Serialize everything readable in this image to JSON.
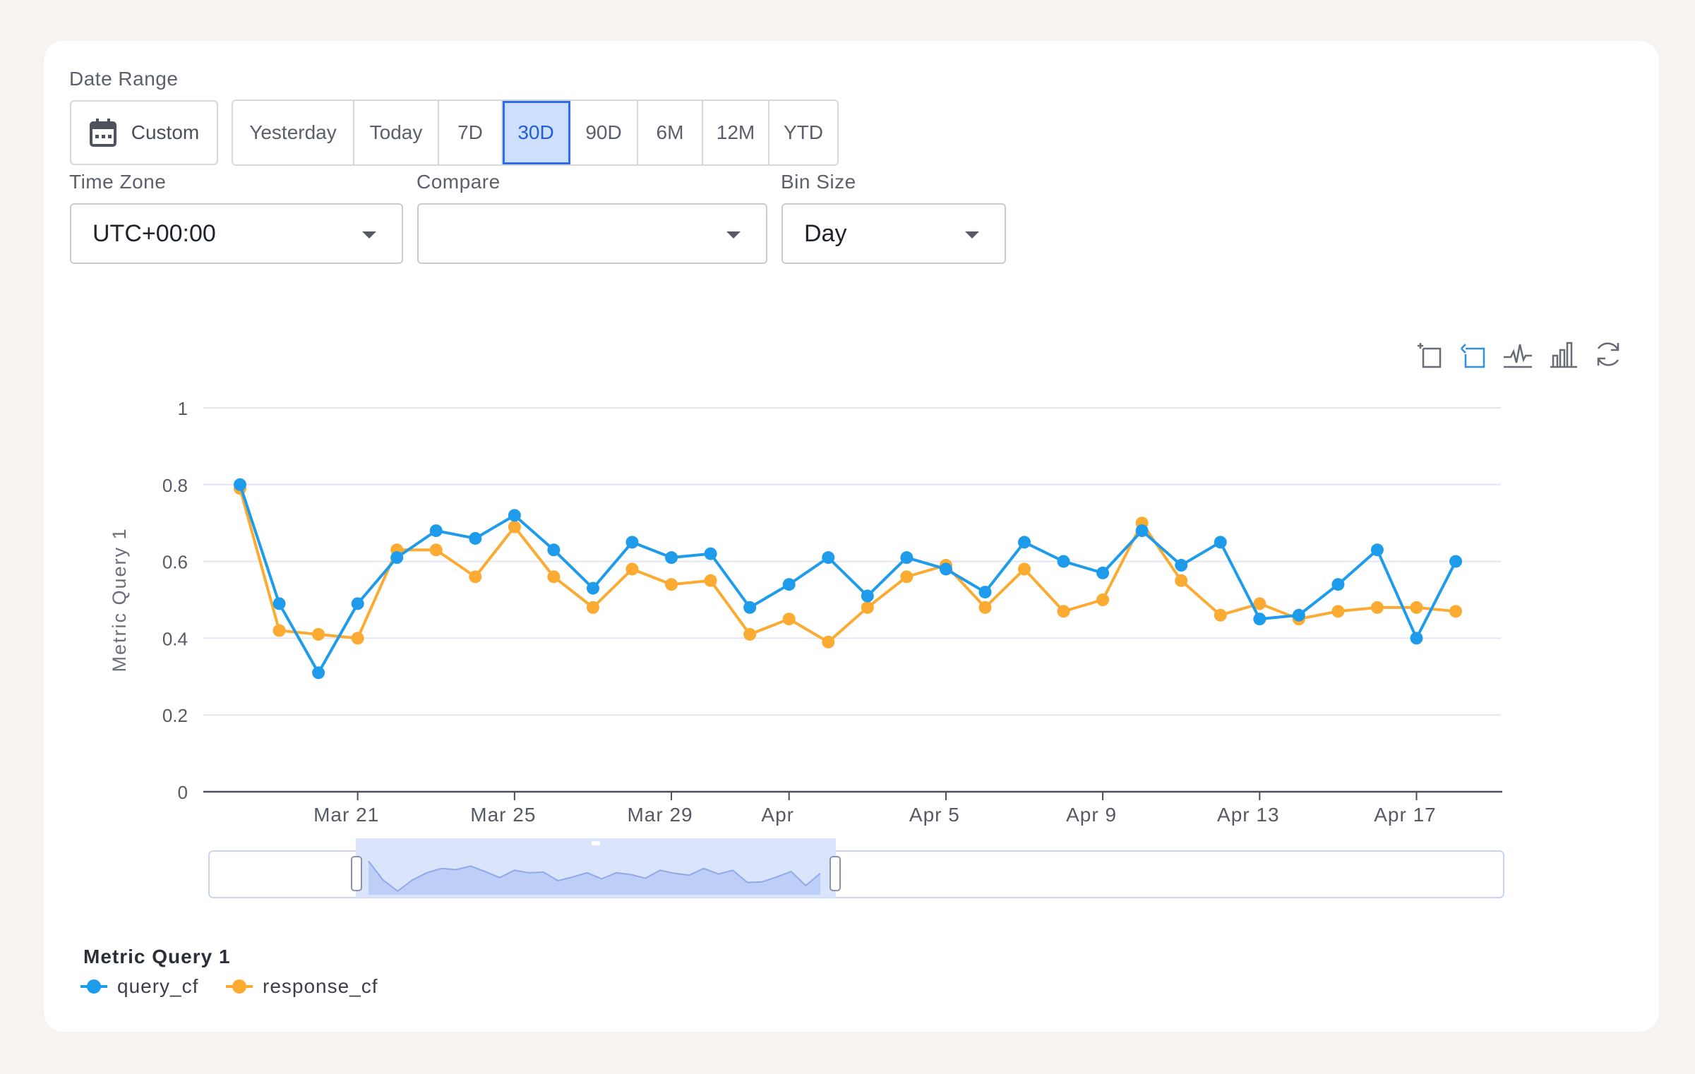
{
  "filters": {
    "date_range_label": "Date Range",
    "custom_label": "Custom",
    "range_options": [
      "Yesterday",
      "Today",
      "7D",
      "30D",
      "90D",
      "6M",
      "12M",
      "YTD"
    ],
    "active_range": "30D",
    "time_zone_label": "Time Zone",
    "time_zone_value": "UTC+00:00",
    "compare_label": "Compare",
    "compare_value": "",
    "bin_size_label": "Bin Size",
    "bin_size_value": "Day"
  },
  "toolbar": {
    "icons": [
      "zoom-select-icon",
      "zoom-reset-icon",
      "line-chart-icon",
      "bar-chart-icon",
      "refresh-icon"
    ]
  },
  "legend": {
    "title": "Metric Query 1",
    "items": [
      "query_cf",
      "response_cf"
    ]
  },
  "colors": {
    "query_cf": "#1e9bea",
    "response_cf": "#fbab31",
    "active_range_bg": "#cfe0ff",
    "active_range_text": "#1f5fe0"
  },
  "chart_data": {
    "type": "line",
    "title": "",
    "ylabel": "Metric Query 1",
    "xlabel": "",
    "ylim": [
      0,
      1
    ],
    "yticks": [
      "0",
      "0.2",
      "0.4",
      "0.6",
      "0.8",
      "1"
    ],
    "xticks": [
      {
        "label": "Mar 21",
        "date": "2024-03-21"
      },
      {
        "label": "Mar 25",
        "date": "2024-03-25"
      },
      {
        "label": "Mar 29",
        "date": "2024-03-29"
      },
      {
        "label": "Apr",
        "date": "2024-04-01"
      },
      {
        "label": "Apr 5",
        "date": "2024-04-05"
      },
      {
        "label": "Apr 9",
        "date": "2024-04-09"
      },
      {
        "label": "Apr 13",
        "date": "2024-04-13"
      },
      {
        "label": "Apr 17",
        "date": "2024-04-17"
      }
    ],
    "x": [
      "2024-03-18",
      "2024-03-19",
      "2024-03-20",
      "2024-03-21",
      "2024-03-22",
      "2024-03-23",
      "2024-03-24",
      "2024-03-25",
      "2024-03-26",
      "2024-03-27",
      "2024-03-28",
      "2024-03-29",
      "2024-03-30",
      "2024-03-31",
      "2024-04-01",
      "2024-04-02",
      "2024-04-03",
      "2024-04-04",
      "2024-04-05",
      "2024-04-06",
      "2024-04-07",
      "2024-04-08",
      "2024-04-09",
      "2024-04-10",
      "2024-04-11",
      "2024-04-12",
      "2024-04-13",
      "2024-04-14",
      "2024-04-15",
      "2024-04-16",
      "2024-04-17",
      "2024-04-18"
    ],
    "series": [
      {
        "name": "query_cf",
        "values": [
          0.8,
          0.49,
          0.31,
          0.49,
          0.61,
          0.68,
          0.66,
          0.72,
          0.63,
          0.53,
          0.65,
          0.61,
          0.62,
          0.48,
          0.54,
          0.61,
          0.51,
          0.61,
          0.58,
          0.52,
          0.65,
          0.6,
          0.57,
          0.68,
          0.59,
          0.65,
          0.45,
          0.46,
          0.54,
          0.63,
          0.4,
          0.6
        ]
      },
      {
        "name": "response_cf",
        "values": [
          0.79,
          0.42,
          0.41,
          0.4,
          0.63,
          0.63,
          0.56,
          0.69,
          0.56,
          0.48,
          0.58,
          0.54,
          0.55,
          0.41,
          0.45,
          0.39,
          0.48,
          0.56,
          0.59,
          0.48,
          0.58,
          0.47,
          0.5,
          0.7,
          0.55,
          0.46,
          0.49,
          0.45,
          0.47,
          0.48,
          0.48,
          0.47
        ]
      }
    ],
    "grid": true,
    "legend_position": "bottom-left"
  }
}
